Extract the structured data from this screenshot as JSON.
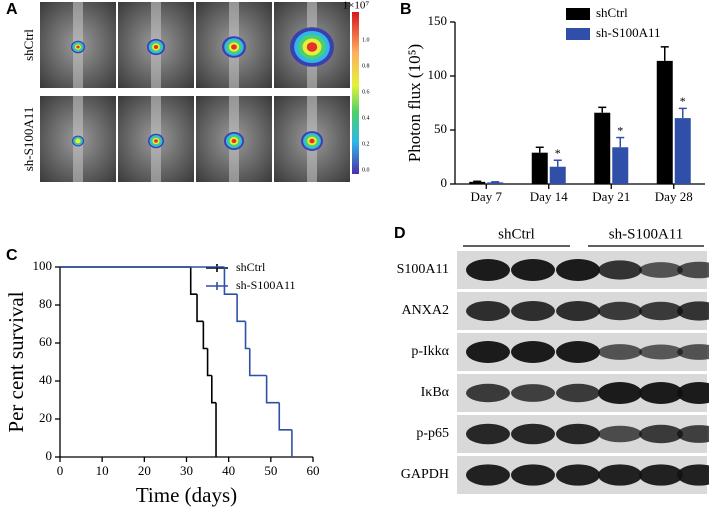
{
  "panel_a": {
    "label": "A",
    "rows": [
      "shCtrl",
      "sh-S100A11"
    ],
    "colorbar": {
      "title": "1×10⁷",
      "ticks": [
        "1.0",
        "0.8",
        "0.6",
        "0.4",
        "0.2",
        "0.0"
      ]
    }
  },
  "chart_data": [
    {
      "type": "bar",
      "panel": "B",
      "y_label": "Photon flux (10⁵)",
      "categories": [
        "Day 7",
        "Day 14",
        "Day 21",
        "Day 28"
      ],
      "series": [
        {
          "name": "shCtrl",
          "color": "#000000",
          "values": [
            2,
            29,
            66,
            114
          ],
          "errors": [
            0.5,
            5,
            5,
            13
          ]
        },
        {
          "name": "sh-S100A11",
          "color": "#2f4fa8",
          "values": [
            1.5,
            16,
            34,
            61
          ],
          "errors": [
            0.5,
            6,
            9,
            9
          ]
        }
      ],
      "significance": [
        null,
        "*",
        "*",
        "*"
      ],
      "ylim": [
        0,
        150
      ],
      "yticks": [
        0,
        50,
        100,
        150
      ]
    },
    {
      "type": "line",
      "panel": "C",
      "x_label": "Time (days)",
      "y_label": "Per cent survival",
      "series": [
        {
          "name": "shCtrl",
          "color": "#000000",
          "x": [
            0,
            31,
            32.5,
            34,
            35,
            36,
            37
          ],
          "values": [
            100,
            85.7,
            71.4,
            57.1,
            42.9,
            28.6,
            0
          ]
        },
        {
          "name": "sh-S100A11",
          "color": "#2f4fa8",
          "x": [
            0,
            39,
            42,
            44,
            45,
            49,
            52,
            55
          ],
          "values": [
            100,
            85.7,
            71.4,
            57.1,
            42.9,
            28.6,
            14.3,
            0
          ]
        }
      ],
      "xlim": [
        0,
        60
      ],
      "xticks": [
        0,
        10,
        20,
        30,
        40,
        50,
        60
      ],
      "ylim": [
        0,
        100
      ],
      "yticks": [
        0,
        20,
        40,
        60,
        80,
        100
      ]
    }
  ],
  "panel_d": {
    "label": "D",
    "groups": [
      "shCtrl",
      "sh-S100A11"
    ],
    "rows": [
      "S100A11",
      "ANXA2",
      "p-Ikkα",
      "IκBα",
      "p-p65",
      "GAPDH"
    ]
  }
}
